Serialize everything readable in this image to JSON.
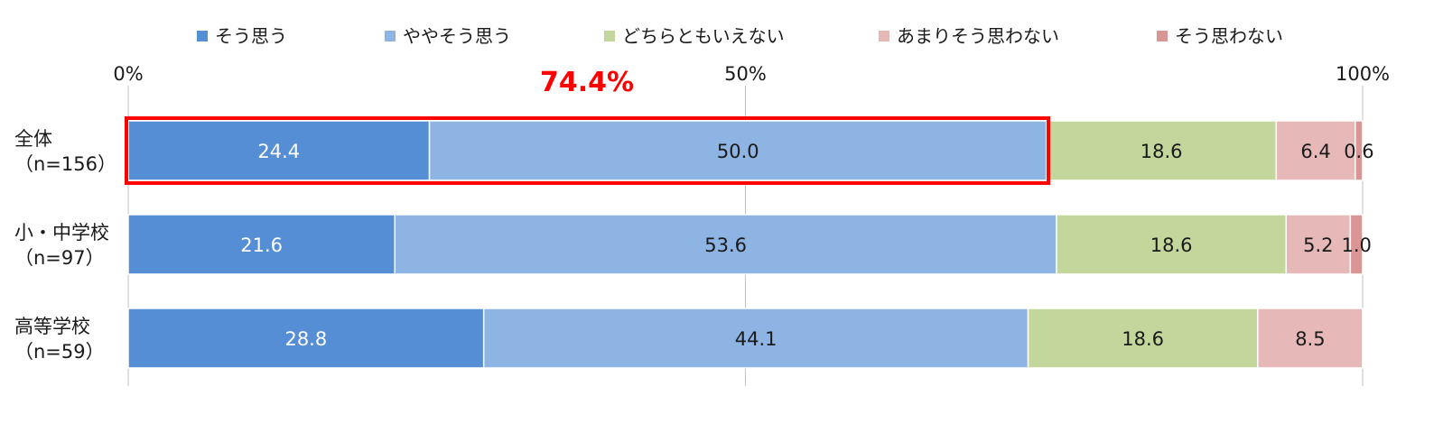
{
  "chart_data": {
    "type": "bar",
    "orientation": "horizontal",
    "stacked": "100%",
    "categories": [
      [
        "全体",
        "（n=156）"
      ],
      [
        "小・中学校",
        "（n=97）"
      ],
      [
        "高等学校",
        "（n=59）"
      ]
    ],
    "series": [
      {
        "name": "そう思う",
        "color": "#558ed5",
        "values": [
          24.4,
          21.6,
          28.8
        ],
        "label_color": "#ffffff"
      },
      {
        "name": "ややそう思う",
        "color": "#8eb4e3",
        "values": [
          50.0,
          53.6,
          44.1
        ],
        "label_color": "#1a1a1a"
      },
      {
        "name": "どちらともいえない",
        "color": "#c3d69b",
        "values": [
          18.6,
          18.6,
          18.6
        ],
        "label_color": "#1a1a1a"
      },
      {
        "name": "あまりそう思わない",
        "color": "#e6b9b8",
        "values": [
          6.4,
          5.2,
          8.5
        ],
        "label_color": "#1a1a1a"
      },
      {
        "name": "そう思わない",
        "color": "#d99694",
        "values": [
          0.6,
          1.0,
          0.0
        ],
        "label_color": "#1a1a1a"
      }
    ],
    "data_labels": [
      [
        "24.4",
        "50.0",
        "18.6",
        "6.4",
        "0.6"
      ],
      [
        "21.6",
        "53.6",
        "18.6",
        "5.2",
        "1.0"
      ],
      [
        "28.8",
        "44.1",
        "18.6",
        "8.5",
        ""
      ]
    ],
    "xlim": [
      0,
      100
    ],
    "xticks": [
      0,
      50,
      100
    ],
    "xtick_labels": [
      "0%",
      "50%",
      "100%"
    ],
    "grid": true,
    "legend_position": "top",
    "highlight": {
      "label": "74.4%",
      "color": "#ff0000",
      "category_index": 0,
      "series_range": [
        0,
        1
      ],
      "value": 74.4
    }
  }
}
